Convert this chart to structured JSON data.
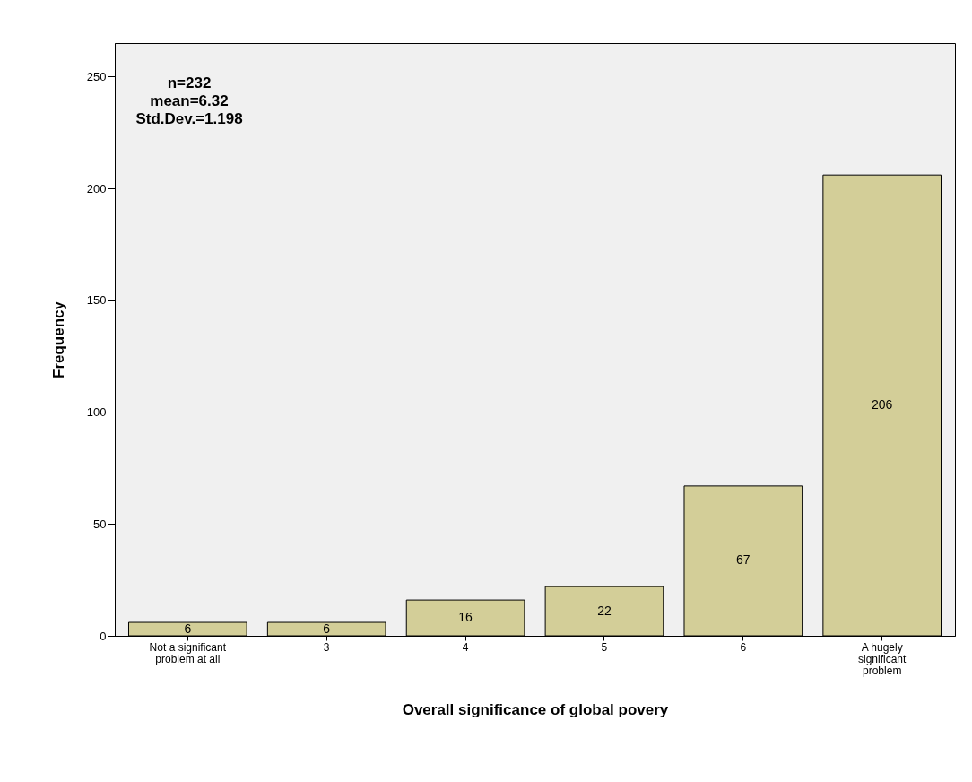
{
  "chart_data": {
    "type": "bar",
    "xlabel": "Overall significance of global povery",
    "ylabel": "Frequency",
    "categories": [
      "Not a significant problem at all",
      "3",
      "4",
      "5",
      "6",
      "A hugely significant problem"
    ],
    "values": [
      6,
      6,
      16,
      22,
      67,
      206
    ],
    "color": "#d3ce98",
    "ylim": [
      0,
      265
    ],
    "yticks": [
      0,
      50,
      100,
      150,
      200,
      250
    ],
    "grid": false,
    "data_labels": true,
    "annotations": [
      "n=232",
      "mean=6.32",
      "Std.Dev.=1.198"
    ]
  }
}
